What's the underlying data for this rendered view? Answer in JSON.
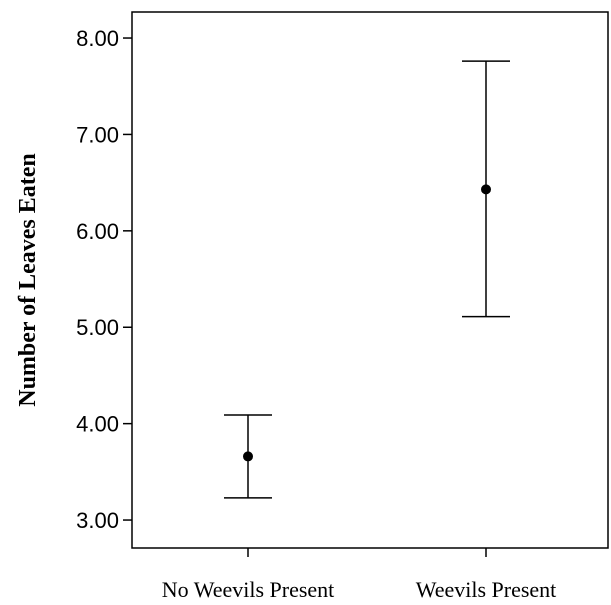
{
  "chart_data": {
    "type": "scatter",
    "title": "",
    "xlabel": "",
    "ylabel": "Number of Leaves Eaten",
    "categories": [
      "No Weevils Present",
      "Weevils Present"
    ],
    "points": [
      {
        "category": "No Weevils Present",
        "mean": 3.66,
        "lower": 3.23,
        "upper": 4.09
      },
      {
        "category": "Weevils Present",
        "mean": 6.43,
        "lower": 5.11,
        "upper": 7.76
      }
    ],
    "y_ticks": [
      "3.00",
      "4.00",
      "5.00",
      "6.00",
      "7.00",
      "8.00"
    ],
    "ylim": [
      2.71,
      8.27
    ],
    "grid": false,
    "error_bars": true,
    "colors": {
      "marks": "#000000",
      "frame": "#000000",
      "background": "#ffffff"
    }
  }
}
